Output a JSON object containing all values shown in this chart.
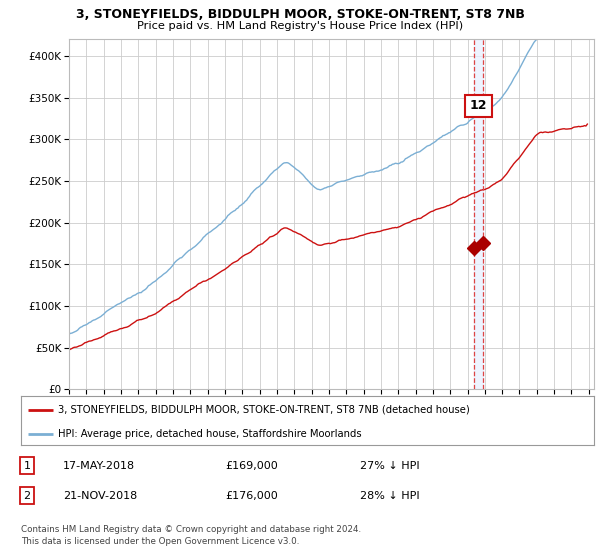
{
  "title1": "3, STONEYFIELDS, BIDDULPH MOOR, STOKE-ON-TRENT, ST8 7NB",
  "title2": "Price paid vs. HM Land Registry's House Price Index (HPI)",
  "background_color": "#ffffff",
  "plot_bg_color": "#ffffff",
  "grid_color": "#cccccc",
  "hpi_color": "#7bafd4",
  "price_color": "#cc1111",
  "sale1_x": 2018.37,
  "sale2_x": 2018.9,
  "sale1_price": 169000,
  "sale2_price": 176000,
  "legend_label1": "3, STONEYFIELDS, BIDDULPH MOOR, STOKE-ON-TRENT, ST8 7NB (detached house)",
  "legend_label2": "HPI: Average price, detached house, Staffordshire Moorlands",
  "table_row1": [
    "1",
    "17-MAY-2018",
    "£169,000",
    "27% ↓ HPI"
  ],
  "table_row2": [
    "2",
    "21-NOV-2018",
    "£176,000",
    "28% ↓ HPI"
  ],
  "footnote": "Contains HM Land Registry data © Crown copyright and database right 2024.\nThis data is licensed under the Open Government Licence v3.0.",
  "ylim_min": 0,
  "ylim_max": 420000,
  "xlim_min": 1995,
  "xlim_max": 2025.3,
  "hpi_seed": 10,
  "price_seed": 20
}
